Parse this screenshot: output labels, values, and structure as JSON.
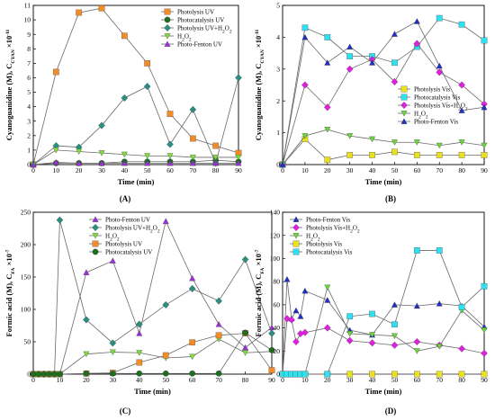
{
  "chart_data": [
    {
      "type": "line",
      "panel_label": "(A)",
      "xlabel": "Time (min)",
      "ylabel": "Cyanoguanidine (M), C",
      "ylabel_sub": "CYAN",
      "ylabel_exp": "×10",
      "ylabel_exp_sup": "-11",
      "xlim": [
        0,
        90
      ],
      "ylim": [
        0,
        11
      ],
      "xticks": [
        0,
        10,
        20,
        30,
        40,
        50,
        60,
        70,
        80,
        90
      ],
      "yticks": [
        0,
        1,
        2,
        3,
        4,
        5,
        6,
        7,
        8,
        9,
        10,
        11
      ],
      "legend_position": "top-right",
      "series": [
        {
          "name": "Photolysis UV",
          "color": "#f28c28",
          "marker": "square",
          "x": [
            0,
            10,
            20,
            30,
            40,
            50,
            60,
            70,
            80,
            90
          ],
          "y": [
            0,
            6.4,
            10.5,
            10.8,
            8.9,
            7.0,
            3.5,
            1.8,
            1.3,
            0.8
          ]
        },
        {
          "name": "Photocatalysis UV",
          "color": "#1f6e1f",
          "marker": "circle",
          "x": [
            0,
            10,
            20,
            30,
            40,
            50,
            60,
            70,
            80,
            90
          ],
          "y": [
            0,
            0.1,
            0.1,
            0.1,
            0.2,
            0.2,
            0.2,
            0.2,
            0.3,
            0.2
          ]
        },
        {
          "name": "Photolysis UV+H2O2",
          "name_main": "Photolysis UV+H",
          "name_sub": "2",
          "name_tail": "O",
          "name_sub2": "2",
          "color": "#2a8f80",
          "marker": "diamond",
          "x": [
            0,
            10,
            20,
            30,
            40,
            50,
            60,
            70,
            80,
            90
          ],
          "y": [
            0,
            1.3,
            1.2,
            2.7,
            4.6,
            5.4,
            1.4,
            3.8,
            0.1,
            6.0
          ]
        },
        {
          "name": "H2O2",
          "name_main": "H",
          "name_sub": "2",
          "name_tail": "O",
          "name_sub2": "2",
          "color": "#7fdc3a",
          "marker": "triangle-down",
          "x": [
            0,
            10,
            20,
            30,
            40,
            50,
            60,
            70,
            80,
            90
          ],
          "y": [
            0,
            1.0,
            0.9,
            0.8,
            0.7,
            0.6,
            0.6,
            0.5,
            0.5,
            0.5
          ]
        },
        {
          "name": "Photo-Fenton UV",
          "color": "#9b30d9",
          "marker": "triangle-up",
          "x": [
            0,
            10,
            20,
            30,
            40,
            50,
            60,
            70,
            80,
            90
          ],
          "y": [
            0,
            0.15,
            0.1,
            0.1,
            0.1,
            0.1,
            0.1,
            0.1,
            0.1,
            0.1
          ]
        }
      ]
    },
    {
      "type": "line",
      "panel_label": "(B)",
      "xlabel": "Time (min)",
      "ylabel": "Cyanoguanidine (M), C",
      "ylabel_sub": "CYAN",
      "ylabel_exp": "×10",
      "ylabel_exp_sup": "-11",
      "xlim": [
        0,
        90
      ],
      "ylim": [
        0,
        5
      ],
      "xticks": [
        0,
        10,
        20,
        30,
        40,
        50,
        60,
        70,
        80,
        90
      ],
      "yticks": [
        0,
        1,
        2,
        3,
        4,
        5
      ],
      "legend_position": "bottom-right",
      "series": [
        {
          "name": "Photolysis Vis",
          "color": "#e8e020",
          "marker": "square",
          "x": [
            0,
            10,
            20,
            30,
            40,
            50,
            60,
            70,
            80,
            90
          ],
          "y": [
            0,
            0.8,
            0.15,
            0.3,
            0.3,
            0.4,
            0.3,
            0.3,
            0.3,
            0.3
          ]
        },
        {
          "name": "Photocatalysis Vis",
          "color": "#30e0f0",
          "marker": "square",
          "x": [
            0,
            10,
            20,
            30,
            40,
            50,
            60,
            70,
            80,
            90
          ],
          "y": [
            0,
            4.3,
            4.0,
            3.4,
            3.4,
            3.2,
            3.7,
            4.6,
            4.4,
            3.9
          ]
        },
        {
          "name": "Photolysis Vis+H2O2",
          "name_main": "Photolysis Vis+H",
          "name_sub": "2",
          "name_tail": "O",
          "name_sub2": "2",
          "color": "#e020e0",
          "marker": "diamond",
          "x": [
            0,
            10,
            20,
            30,
            40,
            50,
            60,
            70,
            80,
            90
          ],
          "y": [
            0,
            2.5,
            1.8,
            3.0,
            3.3,
            2.6,
            3.8,
            2.9,
            2.5,
            1.9
          ]
        },
        {
          "name": "H2O2",
          "name_main": "H",
          "name_sub": "2",
          "name_tail": "O",
          "name_sub2": "2",
          "color": "#6ad63a",
          "marker": "triangle-down",
          "x": [
            0,
            10,
            20,
            30,
            40,
            50,
            60,
            70,
            80,
            90
          ],
          "y": [
            0,
            0.9,
            1.1,
            0.9,
            0.8,
            0.7,
            0.7,
            0.6,
            0.7,
            0.6
          ]
        },
        {
          "name": "Photo-Fenton Vis",
          "color": "#2030c0",
          "marker": "triangle-up",
          "x": [
            0,
            10,
            20,
            30,
            40,
            50,
            60,
            70,
            80,
            90
          ],
          "y": [
            0,
            4.0,
            3.2,
            3.7,
            3.2,
            4.1,
            4.5,
            3.1,
            1.7,
            1.8
          ]
        }
      ]
    },
    {
      "type": "line",
      "panel_label": "(C)",
      "xlabel": "Time (min)",
      "ylabel": "Formic acid (M), C",
      "ylabel_sub": "FA",
      "ylabel_exp": "×10",
      "ylabel_exp_sup": "-7",
      "xlim": [
        0,
        90
      ],
      "ylim": [
        0,
        250
      ],
      "xticks": [
        0,
        10,
        20,
        30,
        40,
        50,
        60,
        70,
        80,
        90
      ],
      "yticks": [
        0,
        50,
        100,
        150,
        200,
        250
      ],
      "legend_position": "top-center",
      "series": [
        {
          "name": "Photo-Fenton UV",
          "color": "#9b30d9",
          "marker": "triangle-up",
          "x": [
            0,
            2,
            4,
            6,
            8,
            10,
            20,
            30,
            40,
            50,
            60,
            70,
            80,
            90
          ],
          "y": [
            0,
            0,
            0,
            0,
            0,
            0,
            157,
            175,
            63,
            236,
            148,
            77,
            41,
            72
          ]
        },
        {
          "name": "Photolysis UV+H2O2",
          "name_main": "Photolysis UV+H",
          "name_sub": "2",
          "name_tail": "O",
          "name_sub2": "2",
          "color": "#2a8f80",
          "marker": "diamond",
          "x": [
            0,
            2,
            4,
            6,
            8,
            10,
            20,
            30,
            40,
            50,
            60,
            70,
            80,
            90
          ],
          "y": [
            0,
            0,
            0,
            0,
            0,
            238,
            84,
            48,
            77,
            107,
            132,
            113,
            177,
            63
          ]
        },
        {
          "name": "H2O2",
          "name_main": "H",
          "name_sub": "2",
          "name_tail": "O",
          "name_sub2": "2",
          "color": "#7fdc3a",
          "marker": "triangle-down",
          "x": [
            0,
            2,
            4,
            6,
            8,
            10,
            20,
            30,
            40,
            50,
            60,
            70,
            80,
            90
          ],
          "y": [
            0,
            0,
            0,
            0,
            0,
            0,
            31,
            34,
            33,
            25,
            27,
            54,
            33,
            35
          ]
        },
        {
          "name": "Photolysis UV",
          "color": "#f28c28",
          "marker": "square",
          "x": [
            0,
            2,
            4,
            6,
            8,
            10,
            20,
            30,
            40,
            50,
            60,
            70,
            80,
            90
          ],
          "y": [
            0,
            0,
            0,
            0,
            0,
            0,
            1,
            2,
            18,
            29,
            49,
            60,
            63,
            6
          ]
        },
        {
          "name": "Photocatalysis UV",
          "color": "#1f6e1f",
          "marker": "circle",
          "x": [
            0,
            2,
            4,
            6,
            8,
            10,
            20,
            30,
            40,
            50,
            60,
            70,
            80,
            90
          ],
          "y": [
            0,
            0,
            0,
            0,
            0,
            0,
            1,
            1,
            1,
            1,
            1,
            1,
            64,
            37
          ]
        }
      ]
    },
    {
      "type": "line",
      "panel_label": "(D)",
      "xlabel": "Time (min)",
      "ylabel": "Formic acid (M), C",
      "ylabel_sub": "FA",
      "ylabel_exp": "×10",
      "ylabel_exp_sup": "-7",
      "xlim": [
        0,
        90
      ],
      "ylim": [
        0,
        140
      ],
      "xticks": [
        0,
        10,
        20,
        30,
        40,
        50,
        60,
        70,
        80,
        90
      ],
      "yticks": [
        0,
        20,
        40,
        60,
        80,
        100,
        120,
        140
      ],
      "legend_position": "top-left",
      "series": [
        {
          "name": "Photo-Fenton Vis",
          "color": "#2030c0",
          "marker": "triangle-up",
          "x": [
            0,
            2,
            4,
            6,
            8,
            10,
            20,
            30,
            40,
            50,
            60,
            70,
            80,
            90
          ],
          "y": [
            0,
            82,
            48,
            55,
            50,
            72,
            64,
            38,
            34,
            60,
            59,
            61,
            59,
            41
          ]
        },
        {
          "name": "Photolysis Vis+H2O2",
          "name_main": "Photolysis Vis+H",
          "name_sub": "2",
          "name_tail": "O",
          "name_sub2": "2",
          "color": "#e020e0",
          "marker": "diamond",
          "x": [
            0,
            2,
            4,
            6,
            8,
            10,
            20,
            30,
            40,
            50,
            60,
            70,
            80,
            90
          ],
          "y": [
            0,
            48,
            47,
            28,
            35,
            36,
            40,
            29,
            27,
            25,
            28,
            25,
            22,
            18
          ]
        },
        {
          "name": "H2O2",
          "name_main": "H",
          "name_sub": "2",
          "name_tail": "O",
          "name_sub2": "2",
          "color": "#6ad63a",
          "marker": "triangle-down",
          "x": [
            0,
            2,
            4,
            6,
            8,
            10,
            20,
            30,
            40,
            50,
            60,
            70,
            80,
            90
          ],
          "y": [
            0,
            0,
            0,
            0,
            0,
            0,
            75,
            35,
            34,
            33,
            20,
            24,
            55,
            38
          ]
        },
        {
          "name": "Photolysis Vis",
          "color": "#e8e020",
          "marker": "square",
          "x": [
            0,
            2,
            4,
            6,
            8,
            10,
            20,
            30,
            40,
            50,
            60,
            70,
            80,
            90
          ],
          "y": [
            0,
            0,
            0,
            0,
            0,
            0,
            0,
            0,
            0,
            0,
            0,
            0,
            0,
            0
          ]
        },
        {
          "name": "Photocatalysis Vis",
          "color": "#30e0f0",
          "marker": "square",
          "x": [
            0,
            2,
            4,
            6,
            8,
            10,
            20,
            30,
            40,
            50,
            60,
            70,
            80,
            90
          ],
          "y": [
            0,
            0,
            0,
            0,
            0,
            0,
            0,
            50,
            52,
            43,
            107,
            107,
            58,
            76
          ]
        }
      ]
    }
  ]
}
